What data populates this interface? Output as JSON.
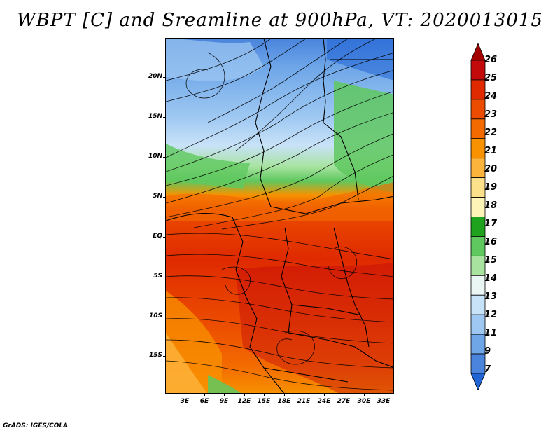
{
  "title": "WBPT [C] and Sreamline at 900hPa, VT: 2020013015",
  "lat_labels": [
    "20N",
    "15N",
    "10N",
    "5N",
    "EQ",
    "5S",
    "10S",
    "15S"
  ],
  "lat_values": [
    20,
    15,
    10,
    5,
    0,
    -5,
    -10,
    -15
  ],
  "lon_labels": [
    "3E",
    "6E",
    "9E",
    "12E",
    "15E",
    "18E",
    "21E",
    "24E",
    "27E",
    "30E",
    "33E"
  ],
  "lon_values": [
    3,
    6,
    9,
    12,
    15,
    18,
    21,
    24,
    27,
    30,
    33
  ],
  "map_extent": {
    "lon_min": 0.5,
    "lon_max": 34.5,
    "lat_min": -19.5,
    "lat_max": 25
  },
  "colorbar": {
    "labels": [
      "26",
      "25",
      "24",
      "23",
      "22",
      "21",
      "20",
      "19",
      "18",
      "17",
      "16",
      "15",
      "14",
      "13",
      "12",
      "11",
      "9",
      "7"
    ],
    "colors": [
      "#a50000",
      "#c30a0a",
      "#df2a00",
      "#ec4c00",
      "#f36b00",
      "#f89200",
      "#fcb43c",
      "#fde08a",
      "#fff4b8",
      "#1fa31f",
      "#5fc85f",
      "#a8e3a0",
      "#eaf6f4",
      "#c8e2f8",
      "#9ec8f2",
      "#6ea6e8",
      "#4a84dc",
      "#2064d6"
    ]
  },
  "footer": "GrADS: IGES/COLA"
}
